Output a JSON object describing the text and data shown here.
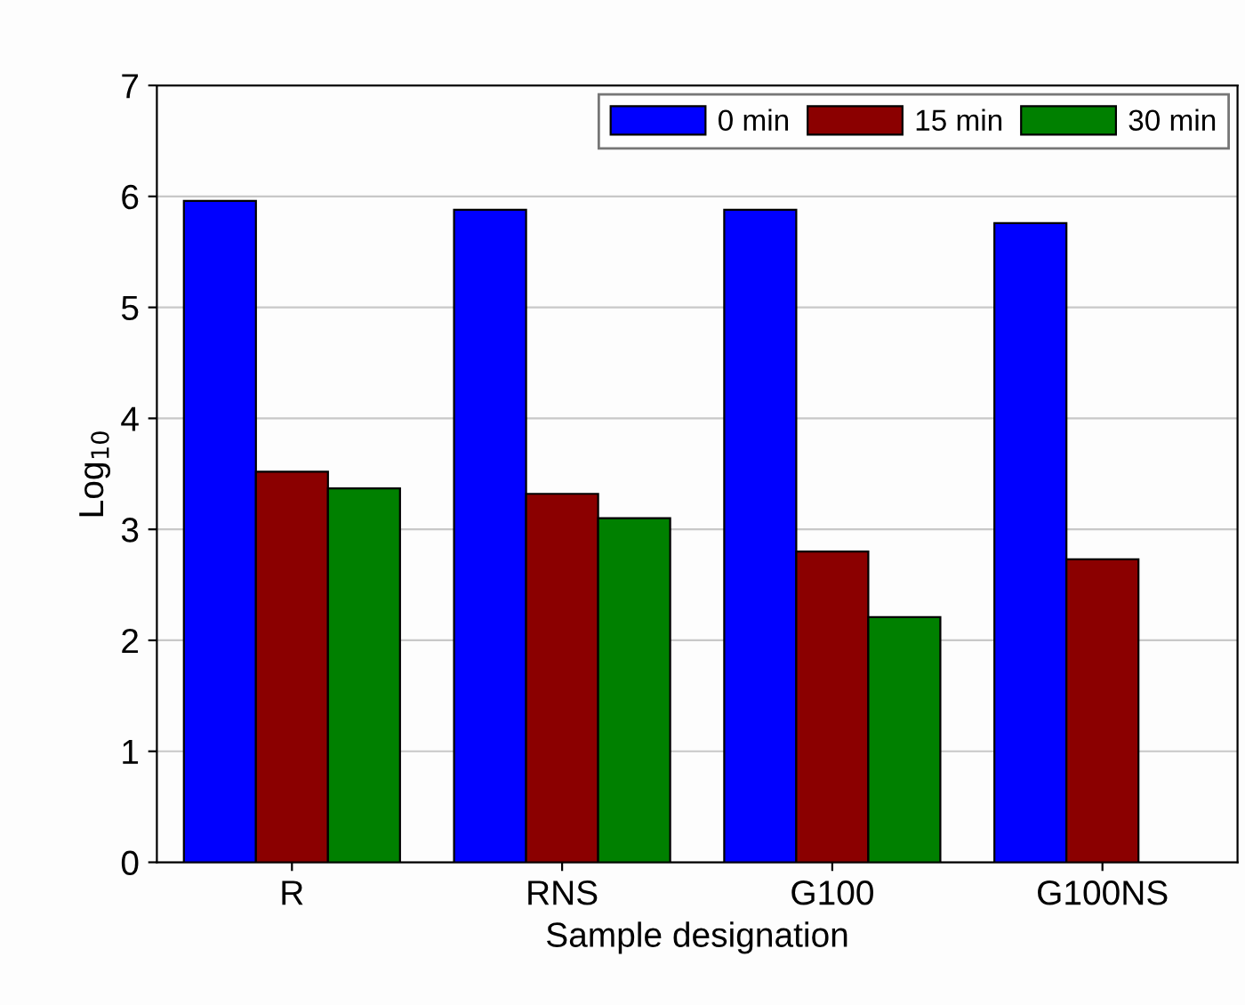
{
  "chart_data": {
    "type": "bar",
    "xlabel": "Sample designation",
    "ylabel": "Log$_{10}$",
    "categories": [
      "R",
      "RNS",
      "G100",
      "G100NS"
    ],
    "series": [
      {
        "name": "0 min",
        "color": "#0000ff",
        "values": [
          5.96,
          5.88,
          5.88,
          5.76
        ]
      },
      {
        "name": "15 min",
        "color": "#8b0000",
        "values": [
          3.52,
          3.32,
          2.8,
          2.73
        ]
      },
      {
        "name": "30 min",
        "color": "#008000",
        "values": [
          3.37,
          3.1,
          2.21,
          null
        ]
      }
    ],
    "ylim": [
      0,
      7
    ],
    "yticks": [
      0,
      1,
      2,
      3,
      4,
      5,
      6,
      7
    ],
    "grid": "y",
    "legend": "top right"
  }
}
